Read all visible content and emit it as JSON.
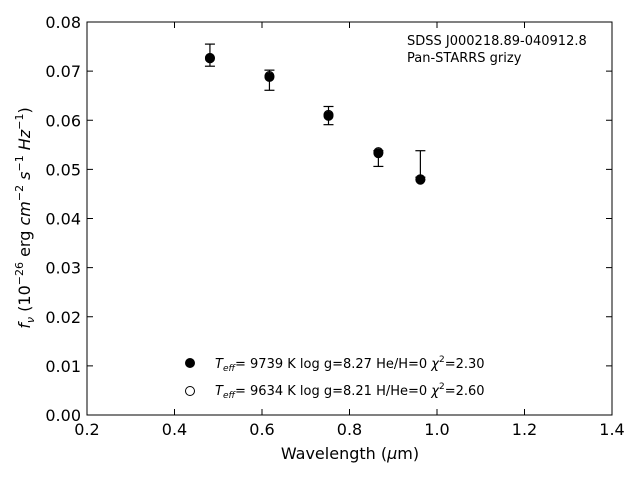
{
  "chart_data": {
    "type": "scatter",
    "xlabel": "Wavelength (μm)",
    "ylabel": "f_ν (10^-26 erg cm^-2 s^-1 Hz^-1)",
    "xlim": [
      0.2,
      1.4
    ],
    "ylim": [
      0.0,
      0.08
    ],
    "xticks": [
      "0.2",
      "0.4",
      "0.6",
      "0.8",
      "1.0",
      "1.2",
      "1.4"
    ],
    "yticks": [
      "0.00",
      "0.01",
      "0.02",
      "0.03",
      "0.04",
      "0.05",
      "0.06",
      "0.07",
      "0.08"
    ],
    "grid": false,
    "annotation": [
      "SDSS J000218.89-040912.8",
      "Pan-STARRS grizy"
    ],
    "observed": [
      {
        "x": 0.481,
        "y": 0.0732,
        "yerr_low": 0.071,
        "yerr_high": 0.0755
      },
      {
        "x": 0.617,
        "y": 0.0685,
        "yerr_low": 0.0661,
        "yerr_high": 0.0702
      },
      {
        "x": 0.752,
        "y": 0.061,
        "yerr_low": 0.0591,
        "yerr_high": 0.0628
      },
      {
        "x": 0.866,
        "y": 0.0537,
        "yerr_low": 0.0506,
        "yerr_high": 0.0538
      },
      {
        "x": 0.962,
        "y": 0.0484,
        "yerr_low": 0.0484,
        "yerr_high": 0.0538
      }
    ],
    "series": [
      {
        "name": "T_eff= 9739 K log g=8.27 He/H=0 χ²=2.30",
        "marker": "filled",
        "x": [
          0.481,
          0.617,
          0.752,
          0.866,
          0.962
        ],
        "y": [
          0.0727,
          0.0688,
          0.0609,
          0.0533,
          0.0479
        ]
      },
      {
        "name": "T_eff= 9634 K log g=8.21 H/He=0 χ²=2.60",
        "marker": "open",
        "x": [
          0.481,
          0.617,
          0.752,
          0.866,
          0.962
        ],
        "y": [
          0.0726,
          0.069,
          0.0611,
          0.0535,
          0.048
        ]
      }
    ],
    "legend": {
      "placement": "lower-center",
      "entries": [
        {
          "marker": "filled",
          "teff_label": "T",
          "teff_sub": "eff",
          "text": "=  9739 K  log g=8.27  He/H=0  ",
          "chi_label": "χ",
          "chi_sup": "2",
          "chi_value": "=2.30"
        },
        {
          "marker": "open",
          "teff_label": "T",
          "teff_sub": "eff",
          "text": "=  9634 K  log g=8.21  H/He=0  ",
          "chi_label": "χ",
          "chi_sup": "2",
          "chi_value": "=2.60"
        }
      ]
    },
    "ylabel_parts": {
      "f": "f",
      "nu": "ν",
      "open": " (10",
      "exp1": "−26",
      "erg": " erg ",
      "cm": "cm",
      "exp2": "−2",
      "s": " s",
      "exp3": "−1",
      "hz": " Hz",
      "exp4": "−1",
      "close": ")"
    },
    "xlabel_parts": {
      "main": "Wavelength (",
      "mu": "μ",
      "unit": "m)"
    }
  }
}
